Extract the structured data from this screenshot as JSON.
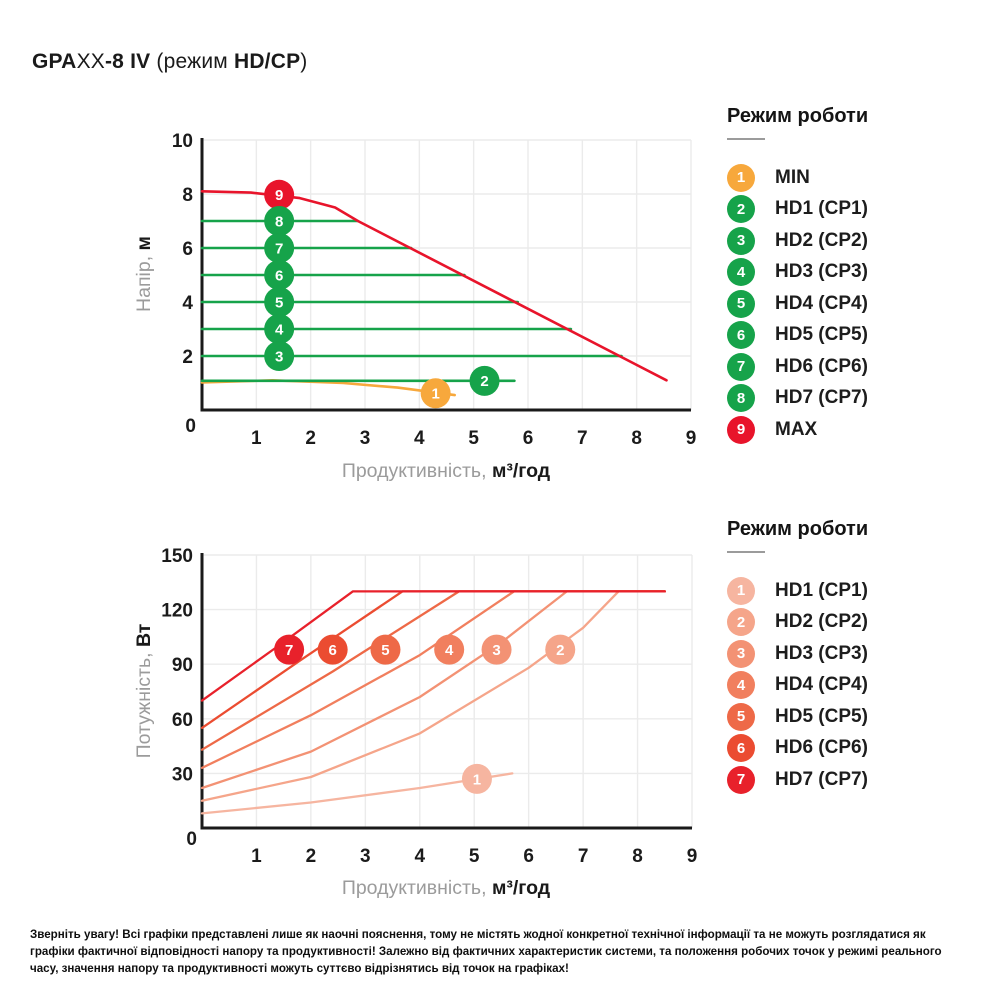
{
  "title": {
    "parts": [
      {
        "text": "GPA",
        "bold": true
      },
      {
        "text": "XX",
        "bold": false
      },
      {
        "text": "-8 IV",
        "bold": true
      },
      {
        "text": " (режим ",
        "bold": false
      },
      {
        "text": "HD/CP",
        "bold": true
      },
      {
        "text": ")",
        "bold": false
      }
    ]
  },
  "colors": {
    "red": "#e8142b",
    "green": "#16a34a",
    "orange": "#f7a83c",
    "grid": "#ebebeb",
    "axis": "#1a1a1a",
    "text_gray": "#9b9b9b",
    "power_gradient": [
      "#f6b5a0",
      "#f5a58a",
      "#f39274",
      "#f17f5e",
      "#ee6947",
      "#eb4c31",
      "#e8212b"
    ]
  },
  "legend_top": {
    "heading": "Режим роботи",
    "items": [
      {
        "badge": "1",
        "label": "MIN",
        "color": "#f7a83c"
      },
      {
        "badge": "2",
        "label": "HD1 (CP1)",
        "color": "#16a34a"
      },
      {
        "badge": "3",
        "label": "HD2 (CP2)",
        "color": "#16a34a"
      },
      {
        "badge": "4",
        "label": "HD3 (CP3)",
        "color": "#16a34a"
      },
      {
        "badge": "5",
        "label": "HD4 (CP4)",
        "color": "#16a34a"
      },
      {
        "badge": "6",
        "label": "HD5 (CP5)",
        "color": "#16a34a"
      },
      {
        "badge": "7",
        "label": "HD6 (CP6)",
        "color": "#16a34a"
      },
      {
        "badge": "8",
        "label": "HD7 (CP7)",
        "color": "#16a34a"
      },
      {
        "badge": "9",
        "label": "MAX",
        "color": "#e8142b"
      }
    ]
  },
  "legend_bottom": {
    "heading": "Режим роботи",
    "items": [
      {
        "badge": "1",
        "label": "HD1 (CP1)",
        "color": "#f6b5a0"
      },
      {
        "badge": "2",
        "label": "HD2 (CP2)",
        "color": "#f5a58a"
      },
      {
        "badge": "3",
        "label": "HD3 (CP3)",
        "color": "#f39274"
      },
      {
        "badge": "4",
        "label": "HD4 (CP4)",
        "color": "#f17f5e"
      },
      {
        "badge": "5",
        "label": "HD5 (CP5)",
        "color": "#ee6947"
      },
      {
        "badge": "6",
        "label": "HD6 (CP6)",
        "color": "#eb4c31"
      },
      {
        "badge": "7",
        "label": "HD7 (CP7)",
        "color": "#e8212b"
      }
    ]
  },
  "footer": {
    "warning": "Зверніть увагу! Всі графіки представлені лише як наочні пояснення, тому не містять жодної конкретної технічної інформації та не можуть розглядатися як графіки фактичної відповідності напору та продуктивності! Залежно від фактичних характеристик системи, та положення робочих точок у режимі реального часу, значення напору та продуктивності можуть суттєво відрізнятись від точок на графіках!",
    "lines": [
      "Зверніть увагу! Всі графіки представлені лише як наочні пояснення, тому не містять жодної конкретної технічної інформації та не можуть розглядатися",
      "як графіки фактичної відповідності напору та продуктивності! Залежно від фактичних характеристик системи, та положення робочих точок у режимі",
      "реального часу, значення напору та продуктивності можуть суттєво відрізнятись від точок на графіках!"
    ]
  },
  "chart_data": [
    {
      "type": "line",
      "name": "head-vs-flow",
      "xlabel_gray": "Продуктивність,",
      "xlabel_bold": "м³/год",
      "ylabel_gray": "Напір,",
      "ylabel_bold": "м",
      "xlim": [
        0,
        9
      ],
      "ylim": [
        0,
        10
      ],
      "x_ticks": [
        1,
        2,
        3,
        4,
        5,
        6,
        7,
        8,
        9
      ],
      "y_ticks": [
        2,
        4,
        6,
        8,
        10
      ],
      "origin_label": "0",
      "grid": true,
      "legend_position": "right",
      "series": [
        {
          "label": "MAX",
          "badge": "9",
          "color": "#e8142b",
          "points": [
            [
              0,
              8.1
            ],
            [
              0.9,
              8.05
            ],
            [
              1.8,
              7.85
            ],
            [
              2.45,
              7.5
            ],
            [
              2.87,
              7.0
            ],
            [
              8.55,
              1.1
            ]
          ],
          "badge_at": [
            1.42,
            7.97
          ]
        },
        {
          "label": "HD7 (CP7)",
          "badge": "8",
          "color": "#16a34a",
          "points": [
            [
              0,
              7
            ],
            [
              2.87,
              7
            ]
          ],
          "badge_at": [
            1.42,
            7
          ]
        },
        {
          "label": "HD6 (CP6)",
          "badge": "7",
          "color": "#16a34a",
          "points": [
            [
              0,
              6
            ],
            [
              3.85,
              6
            ]
          ],
          "badge_at": [
            1.42,
            6
          ]
        },
        {
          "label": "HD5 (CP5)",
          "badge": "6",
          "color": "#16a34a",
          "points": [
            [
              0,
              5
            ],
            [
              4.83,
              5
            ]
          ],
          "badge_at": [
            1.42,
            5
          ]
        },
        {
          "label": "HD4 (CP4)",
          "badge": "5",
          "color": "#16a34a",
          "points": [
            [
              0,
              4
            ],
            [
              5.81,
              4
            ]
          ],
          "badge_at": [
            1.42,
            4
          ]
        },
        {
          "label": "HD3 (CP3)",
          "badge": "4",
          "color": "#16a34a",
          "points": [
            [
              0,
              3
            ],
            [
              6.79,
              3
            ]
          ],
          "badge_at": [
            1.42,
            3
          ]
        },
        {
          "label": "HD2 (CP2)",
          "badge": "3",
          "color": "#16a34a",
          "points": [
            [
              0,
              2
            ],
            [
              7.72,
              2
            ]
          ],
          "badge_at": [
            1.42,
            2
          ]
        },
        {
          "label": "HD1 (CP1)",
          "badge": "2",
          "color": "#16a34a",
          "points": [
            [
              0,
              1.08
            ],
            [
              5.75,
              1.08
            ]
          ],
          "badge_at": [
            5.2,
            1.08
          ]
        },
        {
          "label": "MIN",
          "badge": "1",
          "color": "#f7a83c",
          "points": [
            [
              0,
              1.02
            ],
            [
              1.3,
              1.1
            ],
            [
              2.6,
              1.0
            ],
            [
              3.6,
              0.83
            ],
            [
              4.65,
              0.55
            ]
          ],
          "badge_at": [
            4.3,
            0.62
          ]
        }
      ]
    },
    {
      "type": "line",
      "name": "power-vs-flow",
      "xlabel_gray": "Продуктивність,",
      "xlabel_bold": "м³/год",
      "ylabel_gray": "Потужність,",
      "ylabel_bold": "Вт",
      "xlim": [
        0,
        9
      ],
      "ylim": [
        0,
        150
      ],
      "x_ticks": [
        1,
        2,
        3,
        4,
        5,
        6,
        7,
        8,
        9
      ],
      "y_ticks": [
        30,
        60,
        90,
        120,
        150
      ],
      "origin_label": "0",
      "grid": true,
      "legend_position": "right",
      "power_limit": 130,
      "series": [
        {
          "label": "HD1 (CP1)",
          "badge": "1",
          "color": "#f6b5a0",
          "points": [
            [
              0,
              8
            ],
            [
              2,
              14
            ],
            [
              4,
              22
            ],
            [
              5.7,
              30
            ]
          ],
          "badge_at": [
            5.05,
            27
          ]
        },
        {
          "label": "HD2 (CP2)",
          "badge": "2",
          "color": "#f5a58a",
          "points": [
            [
              0,
              15
            ],
            [
              2,
              28
            ],
            [
              4,
              52
            ],
            [
              6,
              88
            ],
            [
              7,
              110
            ],
            [
              7.65,
              130
            ],
            [
              8.5,
              130
            ]
          ],
          "badge_at": [
            6.58,
            98
          ]
        },
        {
          "label": "HD3 (CP3)",
          "badge": "3",
          "color": "#f39274",
          "points": [
            [
              0,
              22
            ],
            [
              2,
              42
            ],
            [
              4,
              72
            ],
            [
              5.5,
              102
            ],
            [
              6.7,
              130
            ],
            [
              8.5,
              130
            ]
          ],
          "badge_at": [
            5.41,
            98
          ]
        },
        {
          "label": "HD4 (CP4)",
          "badge": "4",
          "color": "#f17f5e",
          "points": [
            [
              0,
              33
            ],
            [
              2,
              62
            ],
            [
              4,
              95
            ],
            [
              5.73,
              130
            ],
            [
              8.5,
              130
            ]
          ],
          "badge_at": [
            4.54,
            98
          ]
        },
        {
          "label": "HD5 (CP5)",
          "badge": "5",
          "color": "#ee6947",
          "points": [
            [
              0,
              43
            ],
            [
              2.4,
              86
            ],
            [
              4.72,
              130
            ],
            [
              8.5,
              130
            ]
          ],
          "badge_at": [
            3.37,
            98
          ]
        },
        {
          "label": "HD6 (CP6)",
          "badge": "6",
          "color": "#eb4c31",
          "points": [
            [
              0,
              55
            ],
            [
              1.8,
              92
            ],
            [
              3.68,
              130
            ],
            [
              8.5,
              130
            ]
          ],
          "badge_at": [
            2.4,
            98
          ]
        },
        {
          "label": "HD7 (CP7)",
          "badge": "7",
          "color": "#e8212b",
          "points": [
            [
              0,
              70
            ],
            [
              1.4,
              100
            ],
            [
              2.77,
              130
            ],
            [
              8.5,
              130
            ]
          ],
          "badge_at": [
            1.6,
            98
          ]
        }
      ]
    }
  ]
}
